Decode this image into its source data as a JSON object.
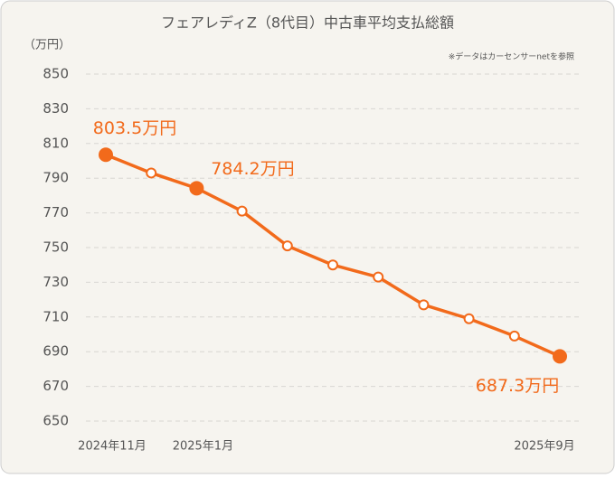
{
  "chart_data": {
    "type": "line",
    "title": "フェアレディZ（8代目）中古車平均支払総額",
    "y_label": "（万円）",
    "note": "※データはカーセンサーnetを参照",
    "x": [
      "2024年11月",
      null,
      "2025年1月",
      null,
      null,
      null,
      null,
      null,
      null,
      null,
      "2025年9月"
    ],
    "series": [
      {
        "name": "平均支払総額",
        "color": "#f26a1b",
        "values": [
          803.5,
          793,
          784.2,
          771,
          751,
          740,
          733,
          717,
          709,
          699,
          687.3
        ],
        "value_labels": [
          "803.5万円",
          null,
          "784.2万円",
          null,
          null,
          null,
          null,
          null,
          null,
          null,
          "687.3万円"
        ]
      }
    ],
    "ylim": [
      650,
      850
    ],
    "yticks": [
      650,
      670,
      690,
      710,
      730,
      750,
      770,
      790,
      810,
      830,
      850
    ],
    "grid": true
  }
}
